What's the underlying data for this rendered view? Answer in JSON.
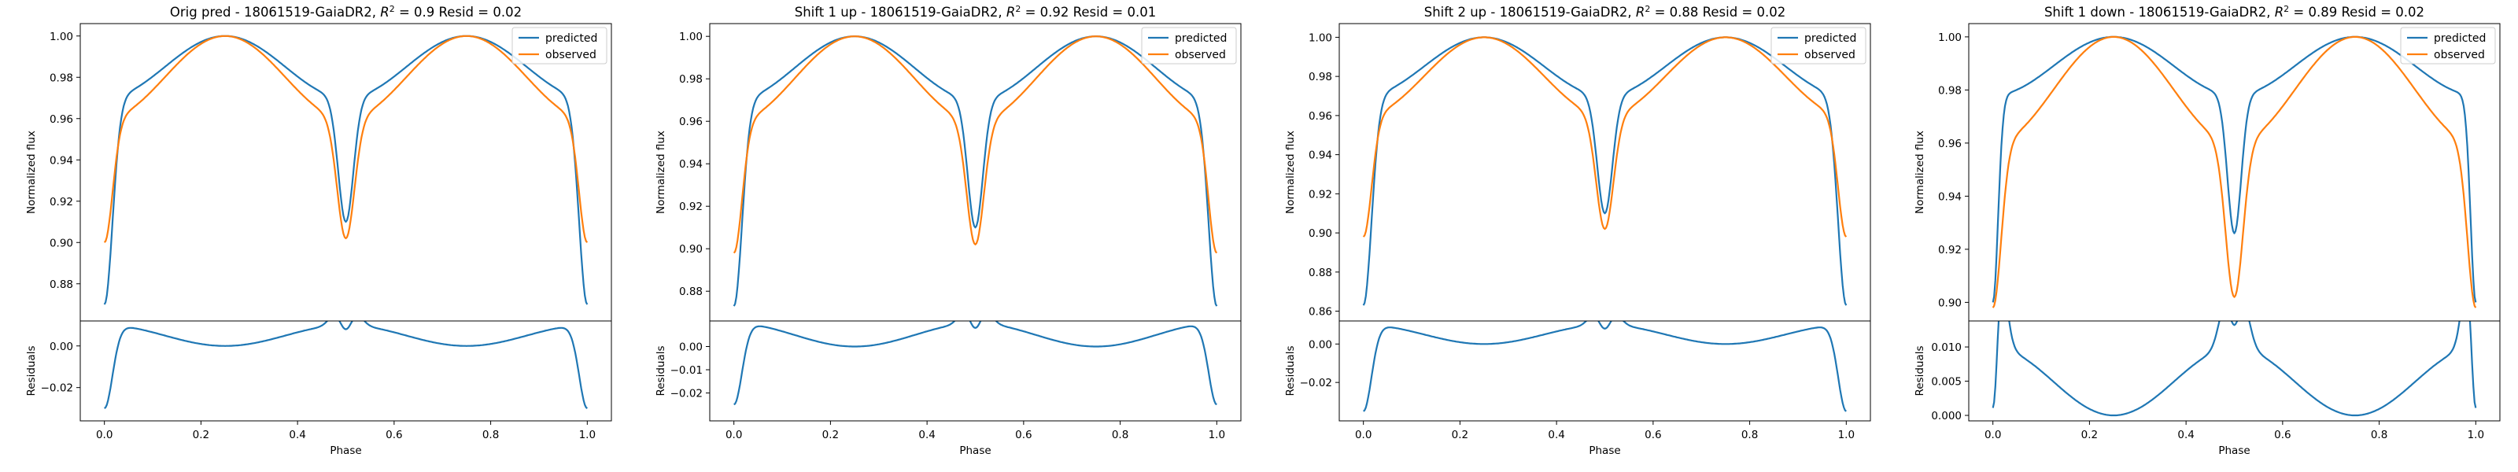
{
  "figure": {
    "colors": {
      "predicted": "#1f77b4",
      "observed": "#ff7f0e"
    },
    "legend_placement": "upper right of top panel"
  },
  "chart_data": [
    {
      "type": "line",
      "title": "Orig pred - 18061519-GaiaDR2, R² = 0.9 Resid = 0.02",
      "title_parts": {
        "prefix": "Orig pred - 18061519-GaiaDR2, ",
        "r2_label": "R",
        "r2_sup": "2",
        "r2_rest": " = 0.9 Resid = 0.02"
      },
      "series": [
        {
          "name": "predicted",
          "params": {
            "base": 0.87,
            "amp_side": 0.13,
            "width_side": 0.035,
            "depth_center": 0.06,
            "width_center": 0.022,
            "shoulder_dip": 0.03
          }
        },
        {
          "name": "observed",
          "params": {
            "base": 0.9,
            "amp_side": 0.1,
            "width_side": 0.035,
            "depth_center": 0.058,
            "width_center": 0.025,
            "shoulder_dip": 0.04
          }
        }
      ],
      "top": {
        "ylabel": "Normalized flux",
        "ylim": [
          0.862,
          1.006
        ],
        "yticks": [
          "0.88",
          "0.90",
          "0.92",
          "0.94",
          "0.96",
          "0.98",
          "1.00"
        ],
        "ytick_values": [
          0.88,
          0.9,
          0.92,
          0.94,
          0.96,
          0.98,
          1.0
        ]
      },
      "bottom": {
        "ylabel": "Residuals",
        "xlabel": "Phase",
        "ylim": [
          -0.036,
          0.012
        ],
        "yticks": [
          "−0.02",
          "0.00"
        ],
        "ytick_values": [
          -0.02,
          0.0
        ]
      },
      "xticks": [
        "0.0",
        "0.2",
        "0.4",
        "0.6",
        "0.8",
        "1.0"
      ],
      "xtick_values": [
        0.0,
        0.2,
        0.4,
        0.6,
        0.8,
        1.0
      ],
      "xlim": [
        -0.05,
        1.05
      ]
    },
    {
      "type": "line",
      "title": "Shift 1 up - 18061519-GaiaDR2, R² = 0.92 Resid = 0.01",
      "title_parts": {
        "prefix": "Shift 1 up - 18061519-GaiaDR2, ",
        "r2_label": "R",
        "r2_sup": "2",
        "r2_rest": " = 0.92 Resid = 0.01"
      },
      "series": [
        {
          "name": "predicted",
          "params": {
            "base": 0.873,
            "amp_side": 0.127,
            "width_side": 0.035,
            "depth_center": 0.06,
            "width_center": 0.022,
            "shoulder_dip": 0.03
          }
        },
        {
          "name": "observed",
          "params": {
            "base": 0.898,
            "amp_side": 0.102,
            "width_side": 0.035,
            "depth_center": 0.058,
            "width_center": 0.025,
            "shoulder_dip": 0.04
          }
        }
      ],
      "top": {
        "ylabel": "Normalized flux",
        "ylim": [
          0.866,
          1.006
        ],
        "yticks": [
          "0.88",
          "0.90",
          "0.92",
          "0.94",
          "0.96",
          "0.98",
          "1.00"
        ],
        "ytick_values": [
          0.88,
          0.9,
          0.92,
          0.94,
          0.96,
          0.98,
          1.0
        ]
      },
      "bottom": {
        "ylabel": "Residuals",
        "xlabel": "Phase",
        "ylim": [
          -0.032,
          0.011
        ],
        "yticks": [
          "−0.02",
          "−0.01",
          "0.00"
        ],
        "ytick_values": [
          -0.02,
          -0.01,
          0.0
        ]
      },
      "xticks": [
        "0.0",
        "0.2",
        "0.4",
        "0.6",
        "0.8",
        "1.0"
      ],
      "xtick_values": [
        0.0,
        0.2,
        0.4,
        0.6,
        0.8,
        1.0
      ],
      "xlim": [
        -0.05,
        1.05
      ]
    },
    {
      "type": "line",
      "title": "Shift 2 up - 18061519-GaiaDR2, R² = 0.88 Resid = 0.02",
      "title_parts": {
        "prefix": "Shift 2 up - 18061519-GaiaDR2, ",
        "r2_label": "R",
        "r2_sup": "2",
        "r2_rest": " = 0.88 Resid = 0.02"
      },
      "series": [
        {
          "name": "predicted",
          "params": {
            "base": 0.863,
            "amp_side": 0.137,
            "width_side": 0.035,
            "depth_center": 0.06,
            "width_center": 0.022,
            "shoulder_dip": 0.03
          }
        },
        {
          "name": "observed",
          "params": {
            "base": 0.898,
            "amp_side": 0.102,
            "width_side": 0.035,
            "depth_center": 0.058,
            "width_center": 0.025,
            "shoulder_dip": 0.04
          }
        }
      ],
      "top": {
        "ylabel": "Normalized flux",
        "ylim": [
          0.855,
          1.007
        ],
        "yticks": [
          "0.86",
          "0.88",
          "0.90",
          "0.92",
          "0.94",
          "0.96",
          "0.98",
          "1.00"
        ],
        "ytick_values": [
          0.86,
          0.88,
          0.9,
          0.92,
          0.94,
          0.96,
          0.98,
          1.0
        ]
      },
      "bottom": {
        "ylabel": "Residuals",
        "xlabel": "Phase",
        "ylim": [
          -0.04,
          0.012
        ],
        "yticks": [
          "−0.02",
          "0.00"
        ],
        "ytick_values": [
          -0.02,
          0.0
        ]
      },
      "xticks": [
        "0.0",
        "0.2",
        "0.4",
        "0.6",
        "0.8",
        "1.0"
      ],
      "xtick_values": [
        0.0,
        0.2,
        0.4,
        0.6,
        0.8,
        1.0
      ],
      "xlim": [
        -0.05,
        1.05
      ]
    },
    {
      "type": "line",
      "title": "Shift 1 down - 18061519-GaiaDR2, R² = 0.89 Resid = 0.02",
      "title_parts": {
        "prefix": "Shift 1 down - 18061519-GaiaDR2, ",
        "r2_label": "R",
        "r2_sup": "2",
        "r2_rest": " = 0.89 Resid = 0.02"
      },
      "series": [
        {
          "name": "predicted",
          "params": {
            "base": 0.9,
            "amp_side": 0.1,
            "width_side": 0.022,
            "depth_center": 0.052,
            "width_center": 0.02,
            "shoulder_dip": 0.022
          }
        },
        {
          "name": "observed",
          "params": {
            "base": 0.898,
            "amp_side": 0.102,
            "width_side": 0.035,
            "depth_center": 0.058,
            "width_center": 0.025,
            "shoulder_dip": 0.04
          }
        }
      ],
      "top": {
        "ylabel": "Normalized flux",
        "ylim": [
          0.893,
          1.005
        ],
        "yticks": [
          "0.90",
          "0.92",
          "0.94",
          "0.96",
          "0.98",
          "1.00"
        ],
        "ytick_values": [
          0.9,
          0.92,
          0.94,
          0.96,
          0.98,
          1.0
        ]
      },
      "bottom": {
        "ylabel": "Residuals",
        "xlabel": "Phase",
        "ylim": [
          -0.0008,
          0.0138
        ],
        "yticks": [
          "0.000",
          "0.005",
          "0.010"
        ],
        "ytick_values": [
          0.0,
          0.005,
          0.01
        ]
      },
      "xticks": [
        "0.0",
        "0.2",
        "0.4",
        "0.6",
        "0.8",
        "1.0"
      ],
      "xtick_values": [
        0.0,
        0.2,
        0.4,
        0.6,
        0.8,
        1.0
      ],
      "xlim": [
        -0.05,
        1.05
      ]
    }
  ]
}
